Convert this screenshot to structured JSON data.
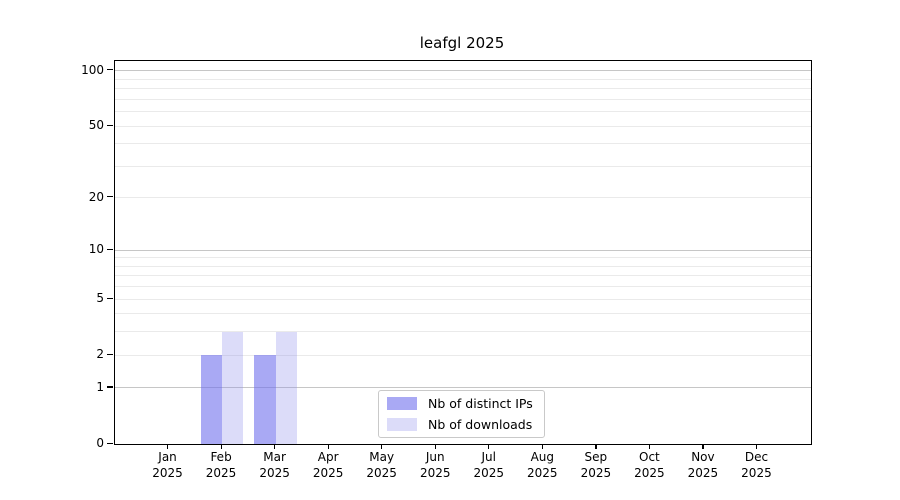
{
  "chart_data": {
    "type": "bar",
    "title": "leafgl 2025",
    "categories": [
      "Jan",
      "Feb",
      "Mar",
      "Apr",
      "May",
      "Jun",
      "Jul",
      "Aug",
      "Sep",
      "Oct",
      "Nov",
      "Dec"
    ],
    "category_year": "2025",
    "series": [
      {
        "name": "Nb of distinct IPs",
        "fill": "#7070ed",
        "alpha": 0.6,
        "solid": "#a9a9f4",
        "values": [
          0,
          2,
          2,
          0,
          0,
          0,
          0,
          0,
          0,
          0,
          0,
          0
        ]
      },
      {
        "name": "Nb of downloads",
        "fill": "#8b8beb",
        "alpha": 0.3,
        "solid": "#dcdcf9",
        "values": [
          0,
          3,
          3,
          0,
          0,
          0,
          0,
          0,
          0,
          0,
          0,
          0
        ]
      }
    ],
    "y_axis": {
      "scale": "log1p",
      "ticks": [
        0,
        1,
        2,
        5,
        10,
        20,
        50,
        100
      ],
      "max": 113,
      "major_gridlines": [
        1,
        10,
        100
      ],
      "minor_gridlines": [
        2,
        3,
        4,
        5,
        6,
        7,
        8,
        9,
        20,
        30,
        40,
        50,
        60,
        70,
        80,
        90
      ]
    },
    "legend": {
      "position": "lower-center"
    },
    "colors": {
      "axis": "#000000",
      "background": "#ffffff",
      "grid_major": "#c6c6c6",
      "grid_minor": "#eaeaea",
      "text": "#000000",
      "legend_border": "#c9c9c9"
    }
  }
}
